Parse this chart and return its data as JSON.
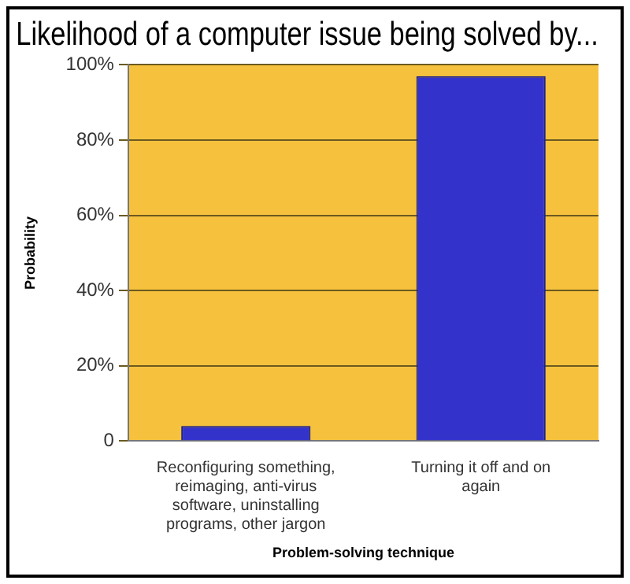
{
  "chart_data": {
    "type": "bar",
    "title": "Likelihood of a computer issue being solved by...",
    "xlabel": "Problem-solving technique",
    "ylabel": "Probability",
    "categories": [
      "Reconfiguring something, reimaging, anti-virus software, uninstalling programs, other jargon",
      "Turning it off and on again"
    ],
    "values": [
      4,
      97
    ],
    "color": "#3333cc",
    "ylim": [
      0,
      100
    ],
    "yticks": [
      {
        "value": 0,
        "label": "0"
      },
      {
        "value": 20,
        "label": "20%"
      },
      {
        "value": 40,
        "label": "40%"
      },
      {
        "value": 60,
        "label": "60%"
      },
      {
        "value": 80,
        "label": "80%"
      },
      {
        "value": 100,
        "label": "100%"
      }
    ],
    "grid": "y",
    "legend": false
  }
}
